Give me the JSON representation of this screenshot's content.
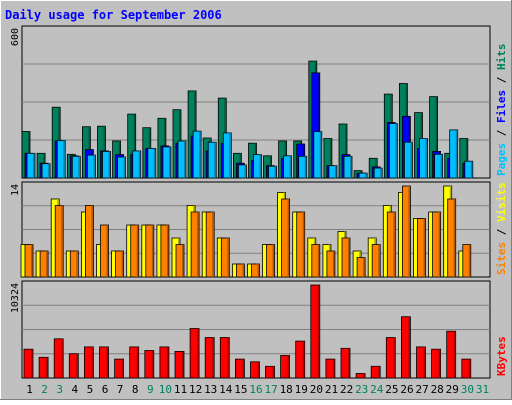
{
  "chart_data": {
    "type": "bar",
    "title": "Daily usage for September 2006",
    "categories": [
      "1",
      "2",
      "3",
      "4",
      "5",
      "6",
      "7",
      "8",
      "9",
      "10",
      "11",
      "12",
      "13",
      "14",
      "15",
      "16",
      "17",
      "18",
      "19",
      "20",
      "21",
      "22",
      "23",
      "24",
      "25",
      "26",
      "27",
      "28",
      "29",
      "30",
      "31"
    ],
    "weekend_days": [
      "2",
      "3",
      "9",
      "10",
      "16",
      "17",
      "23",
      "24",
      "30",
      "31"
    ],
    "panels": [
      {
        "id": "hits-files-pages",
        "label": "Pages / Files / Hits",
        "ymax_label": "600",
        "ylim": [
          0,
          600
        ],
        "series": [
          {
            "name": "Hits",
            "color": "#00805c",
            "values": [
              189,
              100,
              287,
              96,
              208,
              210,
              150,
              259,
              204,
              242,
              277,
              353,
              162,
              324,
              100,
              141,
              90,
              150,
              150,
              474,
              160,
              219,
              30,
              80,
              340,
              383,
              265,
              330,
              100,
              160,
              0
            ]
          },
          {
            "name": "Files",
            "color": "#0000ff",
            "values": [
              100,
              60,
              150,
              90,
              115,
              110,
              95,
              95,
              120,
              130,
              140,
              170,
              110,
              140,
              60,
              70,
              50,
              80,
              138,
              426,
              50,
              95,
              20,
              45,
              225,
              250,
              120,
              108,
              80,
              60,
              0
            ]
          },
          {
            "name": "Pages",
            "color": "#00bfff",
            "values": [
              100,
              58,
              152,
              88,
              93,
              108,
              85,
              110,
              120,
              126,
              150,
              190,
              145,
              183,
              53,
              95,
              48,
              90,
              88,
              188,
              50,
              88,
              20,
              40,
              221,
              145,
              160,
              96,
              195,
              68,
              0
            ]
          }
        ]
      },
      {
        "id": "visits-sites",
        "label": "Sites / Visits",
        "ymax_label": "14",
        "ylim": [
          0,
          14
        ],
        "series": [
          {
            "name": "Visits",
            "color": "#ffff00",
            "values": [
              5,
              4,
              12,
              4,
              10,
              5,
              4,
              8,
              8,
              8,
              6,
              11,
              10,
              6,
              2,
              2,
              5,
              13,
              10,
              6,
              5,
              7,
              4,
              6,
              11,
              13,
              9,
              10,
              14,
              4,
              0
            ]
          },
          {
            "name": "Sites",
            "color": "#ff8000",
            "values": [
              5,
              4,
              11,
              4,
              11,
              8,
              4,
              8,
              8,
              8,
              5,
              10,
              10,
              6,
              2,
              2,
              5,
              12,
              10,
              5,
              4,
              6,
              3,
              5,
              10,
              14,
              9,
              10,
              12,
              5,
              0
            ]
          }
        ]
      },
      {
        "id": "kbytes",
        "label": "KBytes",
        "ymax_label": "10324",
        "ylim": [
          0,
          10324
        ],
        "series": [
          {
            "name": "KBytes",
            "color": "#ff0000",
            "values": [
              3200,
              2300,
              4350,
              2700,
              3450,
              3450,
              2100,
              3450,
              3050,
              3450,
              2950,
              5500,
              4500,
              4500,
              2100,
              1800,
              1300,
              2500,
              4100,
              10324,
              2100,
              3300,
              500,
              1300,
              4500,
              6800,
              3450,
              3200,
              5200,
              2100,
              0
            ]
          }
        ]
      }
    ]
  }
}
